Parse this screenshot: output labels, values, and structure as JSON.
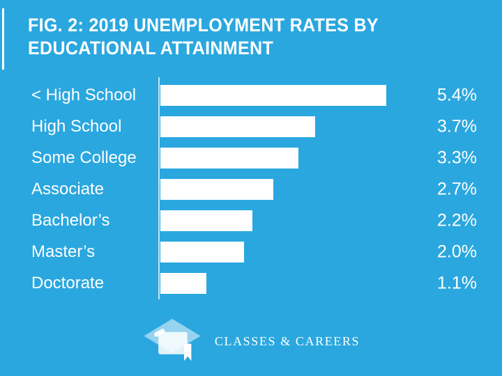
{
  "title": {
    "line1": "FIG. 2: 2019 UNEMPLOYMENT RATES BY",
    "line2": "EDUCATIONAL ATTAINMENT"
  },
  "chart_data": {
    "type": "bar",
    "orientation": "horizontal",
    "title": "FIG. 2: 2019 UNEMPLOYMENT RATES BY EDUCATIONAL ATTAINMENT",
    "categories": [
      "< High School",
      "High School",
      "Some College",
      "Associate",
      "Bachelor’s",
      "Master’s",
      "Doctorate"
    ],
    "values": [
      5.4,
      3.7,
      3.3,
      2.7,
      2.2,
      2.0,
      1.1
    ],
    "value_labels": [
      "5.4%",
      "3.7%",
      "3.3%",
      "2.7%",
      "2.2%",
      "2.0%",
      "1.1%"
    ],
    "xlabel": "",
    "ylabel": "",
    "xlim": [
      0,
      5.5
    ],
    "grid": false,
    "legend": false,
    "bar_color": "#FFFFFF",
    "background_color": "#2AA7DF"
  },
  "footer": {
    "brand": "CLASSES & CAREERS",
    "logo_icon": "graduation-cap-icon"
  },
  "colors": {
    "background": "#2AA7DF",
    "bar": "#FFFFFF",
    "text": "#FFFFFF",
    "cap_translucent": "rgba(255,255,255,0.5)"
  }
}
